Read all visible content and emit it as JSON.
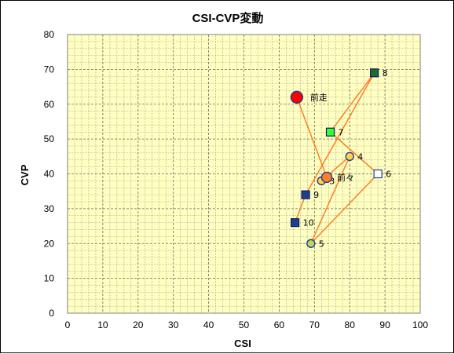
{
  "chart_data": {
    "type": "scatter",
    "title": "CSI-CVP変動",
    "xlabel": "CSI",
    "ylabel": "CVP",
    "xlim": [
      0,
      100
    ],
    "ylim": [
      0,
      80
    ],
    "x_ticks": [
      0,
      10,
      20,
      30,
      40,
      50,
      60,
      70,
      80,
      90,
      100
    ],
    "y_ticks": [
      0,
      10,
      20,
      30,
      40,
      50,
      60,
      70,
      80
    ],
    "grid": true,
    "plot_background": "#ffffc0",
    "line_color": "#ff7f27",
    "points": [
      {
        "label": "10",
        "x": 64.5,
        "y": 26,
        "marker": "square",
        "fill": "#1f3f8f",
        "stroke": "#0a1f6a"
      },
      {
        "label": "9",
        "x": 67.5,
        "y": 34,
        "marker": "square",
        "fill": "#1f3f8f",
        "stroke": "#0a1f6a"
      },
      {
        "label": "8",
        "x": 87,
        "y": 69,
        "marker": "square",
        "fill": "#1e6b2e",
        "stroke": "#0a1f6a"
      },
      {
        "label": "7",
        "x": 74.5,
        "y": 52,
        "marker": "square",
        "fill": "#33ff33",
        "stroke": "#0a1f6a"
      },
      {
        "label": "6",
        "x": 88,
        "y": 40,
        "marker": "square",
        "fill": "#ffffff",
        "stroke": "#1f3f8f"
      },
      {
        "label": "5",
        "x": 69,
        "y": 20,
        "marker": "circle",
        "fill": "#b8d860",
        "stroke": "#1f3f8f"
      },
      {
        "label": "4",
        "x": 80,
        "y": 45,
        "marker": "circle",
        "fill": "#ffd24a",
        "stroke": "#1f3f8f"
      },
      {
        "label": "3",
        "x": 72,
        "y": 38,
        "marker": "circle",
        "fill": "#ffd24a",
        "stroke": "#1f3f8f"
      },
      {
        "label": "前々",
        "x": 73.5,
        "y": 39,
        "marker": "circle-large",
        "fill": "#ff7f27",
        "stroke": "#1f3f8f"
      },
      {
        "label": "前走",
        "x": 65,
        "y": 62,
        "marker": "circle-xlarge",
        "fill": "#ff0000",
        "stroke": "#1f3f8f"
      }
    ],
    "line_order": [
      "10",
      "9",
      "8",
      "7",
      "6",
      "5",
      "4",
      "3",
      "前々",
      "前走"
    ]
  }
}
